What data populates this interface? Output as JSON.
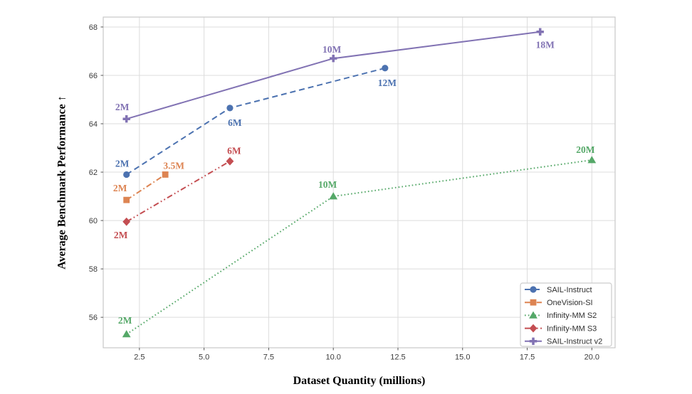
{
  "figure": {
    "background": "#ffffff",
    "grid_color": "#dcdcdc",
    "spine_color": "#c9c9c9",
    "tick_color": "#555555",
    "tick_label_color": "#3c3c3c",
    "legend_border_color": "#cccccc",
    "legend_background": "#ffffff"
  },
  "chart_data": {
    "type": "line",
    "title": "",
    "xlabel": "Dataset Quantity (millions)",
    "ylabel": "Average Benchmark Performance ↑",
    "xlim": [
      1.1,
      20.9
    ],
    "ylim": [
      54.74,
      68.41
    ],
    "grid": true,
    "legend_position": "lower right",
    "xticks": {
      "values": [
        2.5,
        5.0,
        7.5,
        10.0,
        12.5,
        15.0,
        17.5,
        20.0
      ],
      "labels": [
        "2.5",
        "5.0",
        "7.5",
        "10.0",
        "12.5",
        "15.0",
        "17.5",
        "20.0"
      ]
    },
    "yticks": {
      "values": [
        56,
        58,
        60,
        62,
        64,
        66,
        68
      ],
      "labels": [
        "56",
        "58",
        "60",
        "62",
        "64",
        "66",
        "68"
      ]
    },
    "series": [
      {
        "name": "SAIL-Instruct",
        "color": "#4C72B0",
        "linestyle": "dashed",
        "marker": "circle",
        "points": [
          {
            "x": 2,
            "y": 61.9,
            "label": "2M",
            "label_dx": -6,
            "label_dy": -11
          },
          {
            "x": 6,
            "y": 64.65,
            "label": "6M",
            "label_dx": 7,
            "label_dy": 25
          },
          {
            "x": 12,
            "y": 66.3,
            "label": "12M",
            "label_dx": 3,
            "label_dy": 25
          }
        ]
      },
      {
        "name": "OneVision-SI",
        "color": "#DD8452",
        "linestyle": "dashdot",
        "marker": "square",
        "points": [
          {
            "x": 2,
            "y": 60.85,
            "label": "2M",
            "label_dx": -9,
            "label_dy": -12
          },
          {
            "x": 3.5,
            "y": 61.9,
            "label": "3.5M",
            "label_dx": 12,
            "label_dy": -8
          }
        ]
      },
      {
        "name": "Infinity-MM S2",
        "color": "#55A868",
        "linestyle": "dotted",
        "marker": "triangle",
        "points": [
          {
            "x": 2,
            "y": 55.3,
            "label": "2M",
            "label_dx": -2,
            "label_dy": -15
          },
          {
            "x": 10,
            "y": 61.0,
            "label": "10M",
            "label_dx": -8,
            "label_dy": -12
          },
          {
            "x": 20,
            "y": 62.5,
            "label": "20M",
            "label_dx": -9,
            "label_dy": -10
          }
        ]
      },
      {
        "name": "Infinity-MM S3",
        "color": "#C44E52",
        "linestyle": "dashdotdot",
        "marker": "diamond",
        "points": [
          {
            "x": 2,
            "y": 59.95,
            "label": "2M",
            "label_dx": -8,
            "label_dy": 23
          },
          {
            "x": 6,
            "y": 62.45,
            "label": "6M",
            "label_dx": 6,
            "label_dy": -10
          }
        ]
      },
      {
        "name": "SAIL-Instruct v2",
        "color": "#8172B3",
        "linestyle": "solid",
        "marker": "plus",
        "points": [
          {
            "x": 2,
            "y": 64.2,
            "label": "2M",
            "label_dx": -6,
            "label_dy": -12
          },
          {
            "x": 10,
            "y": 66.7,
            "label": "10M",
            "label_dx": -2,
            "label_dy": -8
          },
          {
            "x": 18,
            "y": 67.8,
            "label": "18M",
            "label_dx": 7,
            "label_dy": 23
          }
        ]
      }
    ]
  }
}
